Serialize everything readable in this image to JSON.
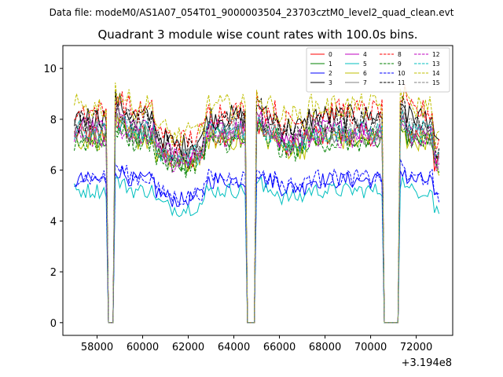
{
  "suptitle": "Data file: modeM0/AS1A07_054T01_9000003504_23703cztM0_level2_quad_clean.evt",
  "chart_data": {
    "type": "line",
    "title": "Quadrant 3 module wise count rates with 100.0s bins.",
    "xlabel": "",
    "ylabel": "",
    "x_offset_label": "+3.194e8",
    "xlim": [
      56500,
      73600
    ],
    "ylim": [
      -0.5,
      10.9
    ],
    "x_start": 57000,
    "x_end": 73000,
    "bin": 100,
    "gaps": [
      [
        58500,
        58700
      ],
      [
        64600,
        64900
      ],
      [
        70600,
        71200
      ]
    ],
    "xticks": [
      58000,
      60000,
      62000,
      64000,
      66000,
      68000,
      70000,
      72000
    ],
    "yticks": [
      0,
      2,
      4,
      6,
      8,
      10
    ],
    "legend_position": "top-right",
    "series": [
      {
        "name": "0",
        "color": "#ff0000",
        "dash": "solid",
        "level": 7.4
      },
      {
        "name": "1",
        "color": "#008000",
        "dash": "solid",
        "level": 7.3
      },
      {
        "name": "2",
        "color": "#0000ff",
        "dash": "solid",
        "level": 5.6
      },
      {
        "name": "3",
        "color": "#000000",
        "dash": "solid",
        "level": 8.1
      },
      {
        "name": "4",
        "color": "#bf00bf",
        "dash": "solid",
        "level": 7.6
      },
      {
        "name": "5",
        "color": "#00bfbf",
        "dash": "solid",
        "level": 5.2
      },
      {
        "name": "6",
        "color": "#bfbf00",
        "dash": "solid",
        "level": 7.2
      },
      {
        "name": "7",
        "color": "#808080",
        "dash": "solid",
        "level": 7.4
      },
      {
        "name": "8",
        "color": "#ff0000",
        "dash": "dashed",
        "level": 8.3
      },
      {
        "name": "9",
        "color": "#008000",
        "dash": "dashed",
        "level": 7.1
      },
      {
        "name": "10",
        "color": "#0000ff",
        "dash": "dashed",
        "level": 5.7
      },
      {
        "name": "11",
        "color": "#000000",
        "dash": "dashed",
        "level": 7.9
      },
      {
        "name": "12",
        "color": "#bf00bf",
        "dash": "dashed",
        "level": 7.3
      },
      {
        "name": "13",
        "color": "#00bfbf",
        "dash": "dashed",
        "level": 7.5
      },
      {
        "name": "14",
        "color": "#bfbf00",
        "dash": "dashed",
        "level": 8.5
      },
      {
        "name": "15",
        "color": "#808080",
        "dash": "dashed",
        "level": 7.6
      }
    ]
  }
}
